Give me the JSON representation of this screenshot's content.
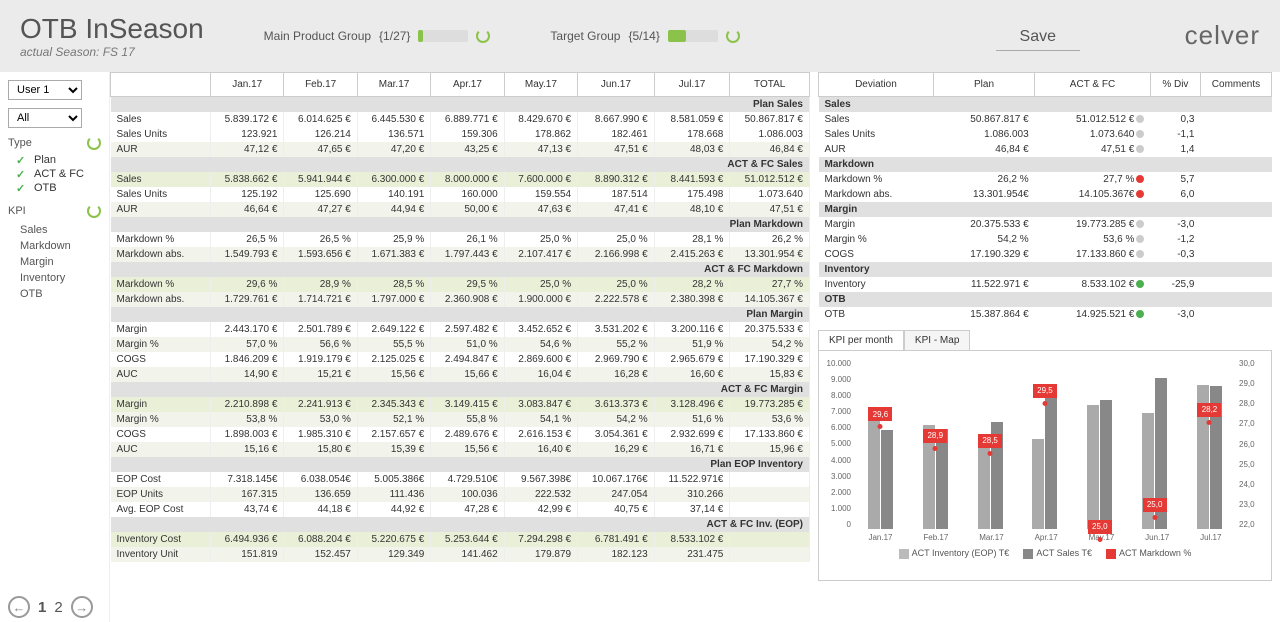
{
  "header": {
    "title": "OTB InSeason",
    "subtitle": "actual Season: FS 17",
    "mainProductGroup": {
      "label": "Main Product Group",
      "count": "{1/27}",
      "fillPct": 10,
      "fillColor": "#8bc34a"
    },
    "targetGroup": {
      "label": "Target Group",
      "count": "{5/14}",
      "fillPct": 36,
      "fillColor": "#8bc34a"
    },
    "save": "Save",
    "logo": "celver"
  },
  "sidebar": {
    "user": "User 1",
    "all": "All",
    "typeLabel": "Type",
    "types": [
      "Plan",
      "ACT & FC",
      "OTB"
    ],
    "kpiLabel": "KPI",
    "kpis": [
      "Sales",
      "Markdown",
      "Margin",
      "Inventory",
      "OTB"
    ]
  },
  "months": [
    "Jan.17",
    "Feb.17",
    "Mar.17",
    "Apr.17",
    "May.17",
    "Jun.17",
    "Jul.17",
    "TOTAL"
  ],
  "sections": [
    {
      "name": "Plan Sales",
      "rows": [
        {
          "l": "Sales",
          "v": [
            "5.839.172 €",
            "6.014.625 €",
            "6.445.530 €",
            "6.889.771 €",
            "8.429.670 €",
            "8.667.990 €",
            "8.581.059 €",
            "50.867.817 €"
          ]
        },
        {
          "l": "Sales Units",
          "v": [
            "123.921",
            "126.214",
            "136.571",
            "159.306",
            "178.862",
            "182.461",
            "178.668",
            "1.086.003"
          ]
        },
        {
          "l": "AUR",
          "v": [
            "47,12 €",
            "47,65 €",
            "47,20 €",
            "43,25 €",
            "47,13 €",
            "47,51 €",
            "48,03 €",
            "46,84 €"
          ],
          "alt": true
        }
      ]
    },
    {
      "name": "ACT & FC Sales",
      "rows": [
        {
          "l": "Sales",
          "v": [
            "5.838.662 €",
            "5.941.944 €",
            "6.300.000 €",
            "8.000.000 €",
            "7.600.000 €",
            "8.890.312 €",
            "8.441.593 €",
            "51.012.512 €"
          ],
          "hl": true
        },
        {
          "l": "Sales Units",
          "v": [
            "125.192",
            "125.690",
            "140.191",
            "160.000",
            "159.554",
            "187.514",
            "175.498",
            "1.073.640"
          ]
        },
        {
          "l": "AUR",
          "v": [
            "46,64 €",
            "47,27 €",
            "44,94 €",
            "50,00 €",
            "47,63 €",
            "47,41 €",
            "48,10 €",
            "47,51 €"
          ],
          "alt": true
        }
      ]
    },
    {
      "name": "Plan Markdown",
      "rows": [
        {
          "l": "Markdown %",
          "v": [
            "26,5 %",
            "26,5 %",
            "25,9 %",
            "26,1 %",
            "25,0 %",
            "25,0 %",
            "28,1 %",
            "26,2 %"
          ]
        },
        {
          "l": "Markdown abs.",
          "v": [
            "1.549.793 €",
            "1.593.656 €",
            "1.671.383 €",
            "1.797.443 €",
            "2.107.417 €",
            "2.166.998 €",
            "2.415.263 €",
            "13.301.954 €"
          ],
          "alt": true
        }
      ]
    },
    {
      "name": "ACT & FC Markdown",
      "rows": [
        {
          "l": "Markdown %",
          "v": [
            "29,6 %",
            "28,9 %",
            "28,5 %",
            "29,5 %",
            "25,0 %",
            "25,0 %",
            "28,2 %",
            "27,7 %"
          ],
          "hl": true
        },
        {
          "l": "Markdown abs.",
          "v": [
            "1.729.761 €",
            "1.714.721 €",
            "1.797.000 €",
            "2.360.908 €",
            "1.900.000 €",
            "2.222.578 €",
            "2.380.398 €",
            "14.105.367 €"
          ],
          "alt": true
        }
      ]
    },
    {
      "name": "Plan Margin",
      "rows": [
        {
          "l": "Margin",
          "v": [
            "2.443.170 €",
            "2.501.789 €",
            "2.649.122 €",
            "2.597.482 €",
            "3.452.652 €",
            "3.531.202 €",
            "3.200.116 €",
            "20.375.533 €"
          ]
        },
        {
          "l": "Margin %",
          "v": [
            "57,0 %",
            "56,6 %",
            "55,5 %",
            "51,0 %",
            "54,6 %",
            "55,2 %",
            "51,9 %",
            "54,2 %"
          ],
          "alt": true
        },
        {
          "l": "COGS",
          "v": [
            "1.846.209 €",
            "1.919.179 €",
            "2.125.025 €",
            "2.494.847 €",
            "2.869.600 €",
            "2.969.790 €",
            "2.965.679 €",
            "17.190.329 €"
          ]
        },
        {
          "l": "AUC",
          "v": [
            "14,90 €",
            "15,21 €",
            "15,56 €",
            "15,66 €",
            "16,04 €",
            "16,28 €",
            "16,60 €",
            "15,83 €"
          ],
          "alt": true
        }
      ]
    },
    {
      "name": "ACT & FC Margin",
      "rows": [
        {
          "l": "Margin",
          "v": [
            "2.210.898 €",
            "2.241.913 €",
            "2.345.343 €",
            "3.149.415 €",
            "3.083.847 €",
            "3.613.373 €",
            "3.128.496 €",
            "19.773.285 €"
          ],
          "hl": true
        },
        {
          "l": "Margin %",
          "v": [
            "53,8 %",
            "53,0 %",
            "52,1 %",
            "55,8 %",
            "54,1 %",
            "54,2 %",
            "51,6 %",
            "53,6 %"
          ],
          "alt": true
        },
        {
          "l": "COGS",
          "v": [
            "1.898.003 €",
            "1.985.310 €",
            "2.157.657 €",
            "2.489.676 €",
            "2.616.153 €",
            "3.054.361 €",
            "2.932.699 €",
            "17.133.860 €"
          ]
        },
        {
          "l": "AUC",
          "v": [
            "15,16 €",
            "15,80 €",
            "15,39 €",
            "15,56 €",
            "16,40 €",
            "16,29 €",
            "16,71 €",
            "15,96 €"
          ],
          "alt": true
        }
      ]
    },
    {
      "name": "Plan EOP Inventory",
      "rows": [
        {
          "l": "EOP Cost",
          "v": [
            "7.318.145€",
            "6.038.054€",
            "5.005.386€",
            "4.729.510€",
            "9.567.398€",
            "10.067.176€",
            "11.522.971€",
            ""
          ]
        },
        {
          "l": "EOP Units",
          "v": [
            "167.315",
            "136.659",
            "111.436",
            "100.036",
            "222.532",
            "247.054",
            "310.266",
            ""
          ],
          "alt": true
        },
        {
          "l": "Avg. EOP Cost",
          "v": [
            "43,74 €",
            "44,18 €",
            "44,92 €",
            "47,28 €",
            "42,99 €",
            "40,75 €",
            "37,14 €",
            ""
          ]
        }
      ]
    },
    {
      "name": "ACT & FC Inv. (EOP)",
      "rows": [
        {
          "l": "Inventory Cost",
          "v": [
            "6.494.936 €",
            "6.088.204 €",
            "5.220.675 €",
            "5.253.644 €",
            "7.294.298 €",
            "6.781.491 €",
            "8.533.102 €",
            ""
          ],
          "hl": true
        },
        {
          "l": "Inventory Unit",
          "v": [
            "151.819",
            "152.457",
            "129.349",
            "141.462",
            "179.879",
            "182.123",
            "231.475",
            ""
          ],
          "alt": true
        }
      ]
    }
  ],
  "deviation": {
    "headers": [
      "Deviation",
      "Plan",
      "ACT & FC",
      "% Div",
      "Comments"
    ],
    "groups": [
      {
        "name": "Sales",
        "rows": [
          {
            "l": "Sales",
            "p": "50.867.817 €",
            "a": "51.012.512 €",
            "d": "0,3",
            "dot": "n"
          },
          {
            "l": "Sales Units",
            "p": "1.086.003",
            "a": "1.073.640",
            "d": "-1,1",
            "dot": "n"
          },
          {
            "l": "AUR",
            "p": "46,84 €",
            "a": "47,51 €",
            "d": "1,4",
            "dot": "n"
          }
        ]
      },
      {
        "name": "Markdown",
        "rows": [
          {
            "l": "Markdown %",
            "p": "26,2 %",
            "a": "27,7 %",
            "d": "5,7",
            "dot": "r"
          },
          {
            "l": "Markdown abs.",
            "p": "13.301.954€",
            "a": "14.105.367€",
            "d": "6,0",
            "dot": "r"
          }
        ]
      },
      {
        "name": "Margin",
        "rows": [
          {
            "l": "Margin",
            "p": "20.375.533 €",
            "a": "19.773.285 €",
            "d": "-3,0",
            "dot": "n"
          },
          {
            "l": "Margin %",
            "p": "54,2 %",
            "a": "53,6 %",
            "d": "-1,2",
            "dot": "n"
          },
          {
            "l": "COGS",
            "p": "17.190.329 €",
            "a": "17.133.860 €",
            "d": "-0,3",
            "dot": "n"
          }
        ]
      },
      {
        "name": "Inventory",
        "rows": [
          {
            "l": "Inventory",
            "p": "11.522.971 €",
            "a": "8.533.102 €",
            "d": "-25,9",
            "dot": "g"
          }
        ]
      },
      {
        "name": "OTB",
        "rows": [
          {
            "l": "OTB",
            "p": "15.387.864 €",
            "a": "14.925.521 €",
            "d": "-3,0",
            "dot": "g"
          }
        ]
      }
    ]
  },
  "chart": {
    "tabs": [
      "KPI per month",
      "KPI - Map"
    ],
    "yLeft": [
      "10.000",
      "9.000",
      "8.000",
      "7.000",
      "6.000",
      "5.000",
      "4.000",
      "3.000",
      "2.000",
      "1.000",
      "0"
    ],
    "yRight": [
      "30,0",
      "29,0",
      "28,0",
      "27,0",
      "26,0",
      "25,0",
      "24,0",
      "23,0",
      "22,0"
    ],
    "months": [
      "Jan.17",
      "Feb.17",
      "Mar.17",
      "Apr.17",
      "May.17",
      "Jun.17",
      "Jul.17"
    ],
    "series": [
      {
        "inv": 6.5,
        "sales": 5.8,
        "md": 29.6,
        "mdTop": true
      },
      {
        "inv": 6.1,
        "sales": 5.9,
        "md": 28.9,
        "mdTop": true
      },
      {
        "inv": 5.2,
        "sales": 6.3,
        "md": 28.5,
        "mdTop": true
      },
      {
        "inv": 5.3,
        "sales": 8.0,
        "md": 29.5,
        "mdTop": true
      },
      {
        "inv": 7.3,
        "sales": 7.6,
        "md": 25.0,
        "mdTop": false
      },
      {
        "inv": 6.8,
        "sales": 8.9,
        "md": 25.0,
        "mdTop": false
      },
      {
        "inv": 8.5,
        "sales": 8.4,
        "md": 28.2,
        "mdTop": true
      }
    ],
    "legend": [
      {
        "color": "#bbb",
        "label": "ACT Inventory (EOP) T€"
      },
      {
        "color": "#888",
        "label": "ACT Sales T€"
      },
      {
        "color": "#e53935",
        "label": "ACT Markdown %"
      }
    ]
  },
  "pager": {
    "pages": [
      "1",
      "2"
    ]
  }
}
